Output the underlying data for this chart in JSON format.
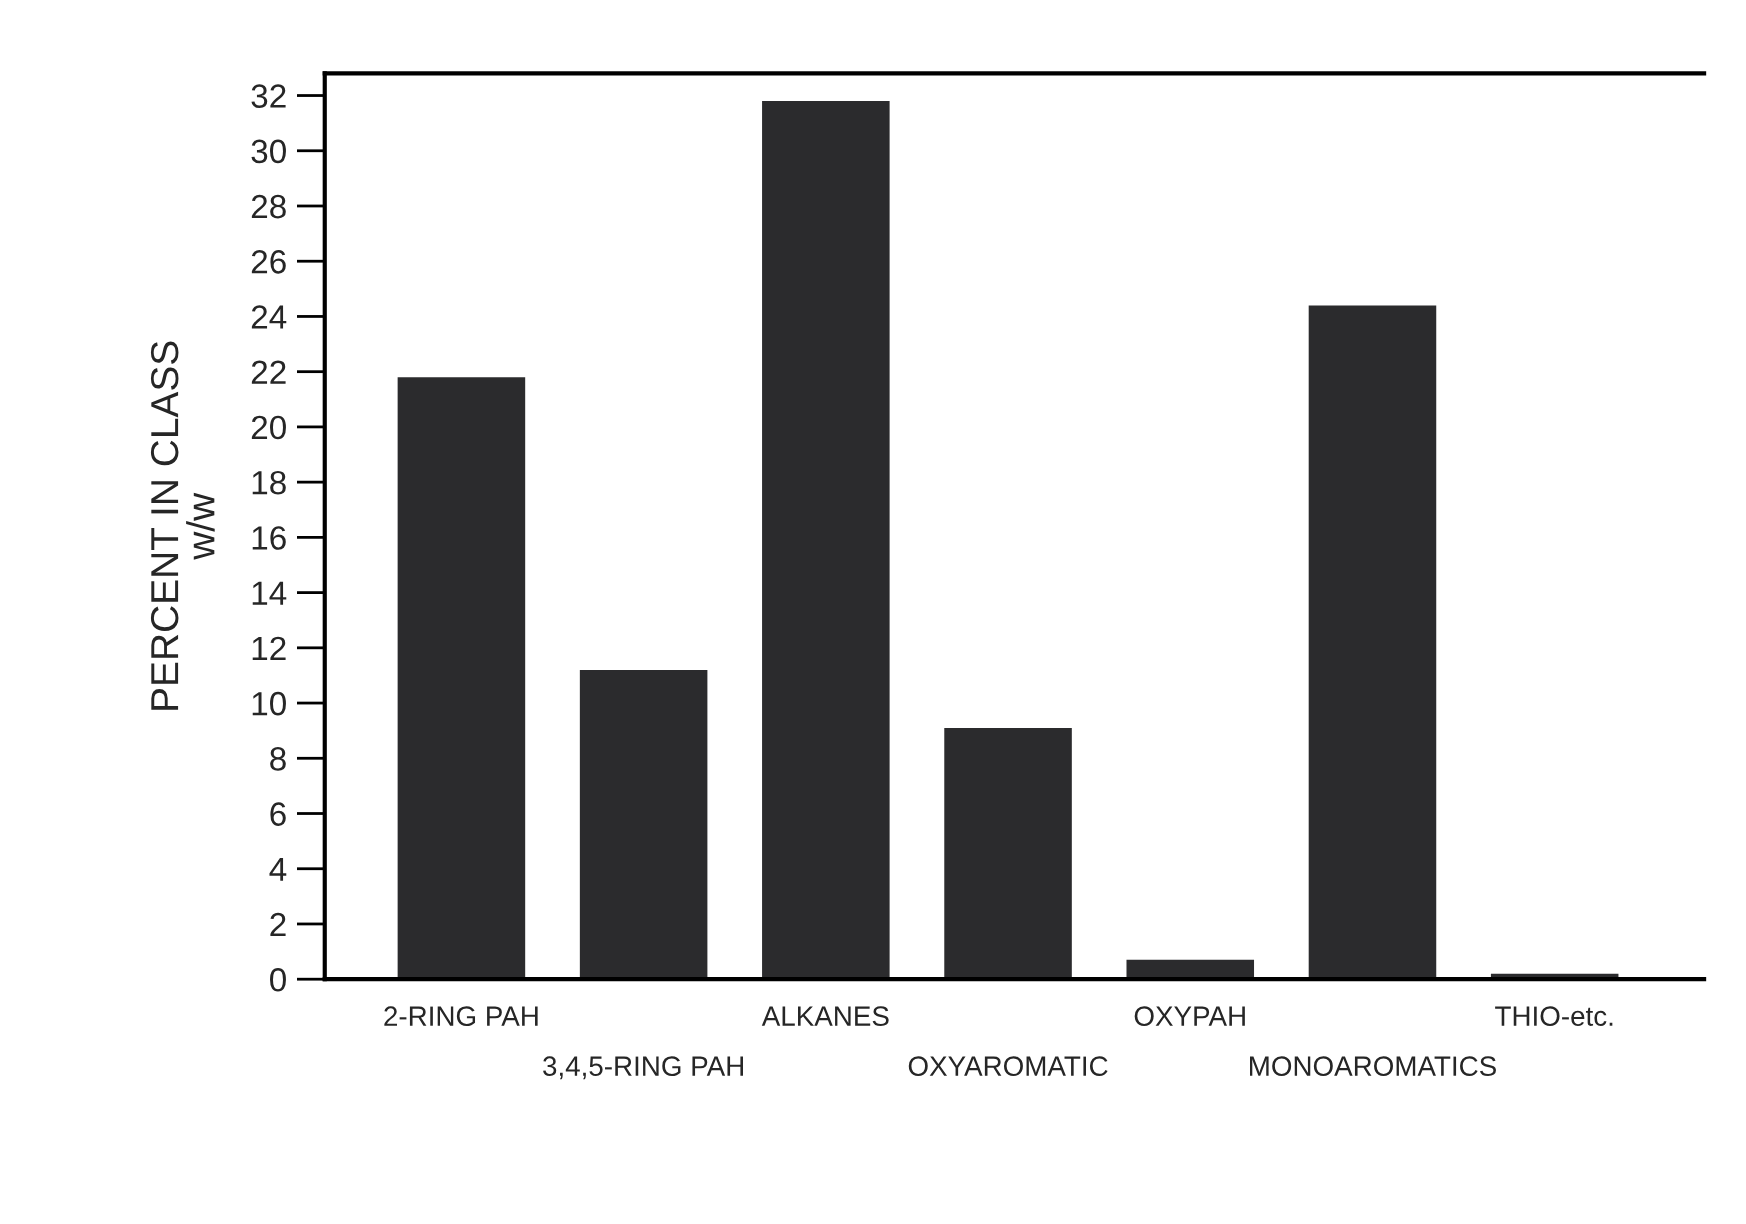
{
  "chart_data": {
    "type": "bar",
    "ylabel": "PERCENT IN CLASS\nw/w",
    "categories": [
      "2-RING PAH",
      "3,4,5-RING PAH",
      "ALKANES",
      "OXYAROMATIC",
      "OXYPAH",
      "MONOAROMATICS",
      "THIO-etc."
    ],
    "values": [
      21.8,
      11.2,
      31.8,
      9.1,
      0.7,
      24.4,
      0.2
    ],
    "color": "#2b2b2d",
    "ylim": [
      0,
      32.8
    ],
    "yticks": [
      0,
      2,
      4,
      6,
      8,
      10,
      12,
      14,
      16,
      18,
      20,
      22,
      24,
      26,
      28,
      30,
      32
    ],
    "grid": false,
    "legend": false
  }
}
